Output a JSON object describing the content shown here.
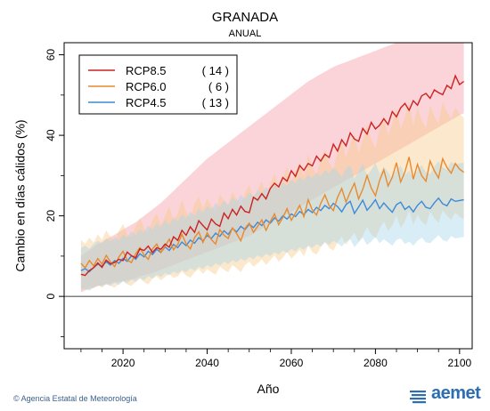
{
  "title": "GRANADA",
  "subtitle": "ANUAL",
  "footer": {
    "credit": "© Agencia Estatal de Meteorología",
    "logo_text": "aemet",
    "logo_color": "#2d6eb3"
  },
  "chart_data": {
    "type": "line",
    "xlabel": "Año",
    "ylabel": "Cambio en días cálidos (%)",
    "xlim": [
      2006,
      2103
    ],
    "ylim": [
      -13,
      63
    ],
    "xticks": [
      2020,
      2040,
      2060,
      2080,
      2100
    ],
    "yticks": [
      0,
      20,
      40,
      60
    ],
    "zero_line": true,
    "grid": false,
    "legend_position": "top-left",
    "x_start": 2010,
    "series": [
      {
        "name": "RCP8.5",
        "count": "( 14 )",
        "color": "#cc2222",
        "band_color": "#f4a0a8",
        "values": [
          5.5,
          5.2,
          6.4,
          7.1,
          8.3,
          7.2,
          9.0,
          8.1,
          8.4,
          9.2,
          8.9,
          11.0,
          10.1,
          9.6,
          11.8,
          11.4,
          12.5,
          10.9,
          12.1,
          11.7,
          13.0,
          12.2,
          14.8,
          13.9,
          16.4,
          15.2,
          17.3,
          15.9,
          18.8,
          17.6,
          16.5,
          19.2,
          18.0,
          17.4,
          20.7,
          19.3,
          21.6,
          20.2,
          22.4,
          21.1,
          20.8,
          24.6,
          23.9,
          25.5,
          24.2,
          26.8,
          28.1,
          27.2,
          29.5,
          28.6,
          31.2,
          29.8,
          32.5,
          31.3,
          33.0,
          32.4,
          34.8,
          33.6,
          35.3,
          34.5,
          37.8,
          36.1,
          38.9,
          37.4,
          40.6,
          39.1,
          38.5,
          41.7,
          40.3,
          43.2,
          41.6,
          42.5,
          44.1,
          42.7,
          45.9,
          44.6,
          46.8,
          47.9,
          46.2,
          48.6,
          47.5,
          49.8,
          50.4,
          49.2,
          51.3,
          50.6,
          50.1,
          52.4,
          51.6,
          54.8,
          52.6,
          53.4
        ],
        "band_low": [
          1.0,
          1.5,
          1.8,
          2.2,
          2.5,
          2.8,
          3.0,
          3.2,
          3.5,
          3.6,
          3.8,
          4.0,
          4.2,
          4.5,
          5.0,
          5.3,
          5.5,
          5.8,
          6.2,
          6.6,
          7.0,
          7.4,
          7.8,
          8.2,
          8.6,
          9.0,
          9.4,
          9.8,
          10.2,
          10.6,
          11.0,
          11.4,
          11.8,
          12.2,
          12.6,
          13.0,
          13.4,
          13.8,
          14.2,
          14.6,
          15.0,
          15.6,
          16.2,
          16.8,
          17.4,
          18.0,
          18.6,
          19.2,
          19.8,
          20.4,
          21.0,
          21.6,
          22.2,
          22.8,
          23.4,
          24.0,
          24.6,
          25.2,
          25.8,
          26.4,
          27.0,
          27.6,
          28.2,
          28.8,
          29.4,
          30.0,
          30.6,
          31.2,
          31.8,
          32.4,
          33.0,
          33.6,
          34.2,
          34.8,
          35.4,
          36.0,
          36.6,
          37.2,
          37.8,
          38.4,
          39.0,
          39.6,
          40.2,
          40.8,
          41.4,
          42.0,
          42.6,
          43.2,
          43.8,
          44.4,
          45.0,
          45.5
        ],
        "band_high": [
          10.0,
          10.8,
          11.5,
          12.2,
          13.0,
          13.5,
          14.2,
          14.8,
          15.3,
          16.0,
          16.6,
          17.2,
          17.8,
          18.4,
          19.2,
          20.0,
          20.8,
          21.6,
          22.4,
          23.2,
          24.2,
          25.2,
          26.2,
          27.2,
          28.2,
          29.2,
          30.2,
          31.2,
          32.2,
          33.2,
          34.2,
          35.0,
          35.8,
          36.6,
          37.4,
          38.2,
          39.0,
          39.8,
          40.6,
          41.4,
          42.2,
          43.0,
          43.8,
          44.6,
          45.4,
          46.2,
          47.0,
          47.8,
          48.6,
          49.4,
          50.2,
          51.0,
          51.8,
          52.6,
          53.4,
          54.0,
          54.6,
          55.2,
          55.8,
          56.4,
          57.0,
          57.4,
          57.8,
          58.2,
          58.6,
          59.0,
          59.4,
          59.8,
          60.2,
          60.6,
          61.0,
          61.4,
          61.8,
          62.2,
          62.6,
          63.0,
          63.0,
          63.0,
          63.0,
          63.0,
          63.0,
          63.0,
          63.0,
          63.0,
          63.0,
          63.0,
          63.0,
          63.0,
          63.0,
          63.0,
          63.0,
          63.0
        ]
      },
      {
        "name": "RCP6.0",
        "count": "(  6 )",
        "color": "#e88a2e",
        "band_color": "#f9cc8e",
        "values": [
          8.2,
          7.1,
          8.9,
          7.6,
          9.4,
          8.0,
          10.2,
          8.6,
          7.4,
          9.8,
          11.2,
          9.0,
          8.4,
          10.6,
          12.1,
          10.3,
          9.2,
          11.8,
          13.0,
          10.9,
          12.5,
          14.2,
          11.6,
          12.9,
          15.4,
          13.1,
          11.8,
          14.6,
          16.0,
          13.4,
          15.8,
          14.1,
          13.0,
          16.6,
          15.2,
          14.4,
          17.0,
          15.6,
          13.8,
          16.9,
          18.2,
          15.9,
          17.4,
          19.0,
          16.4,
          18.6,
          20.5,
          17.8,
          19.6,
          21.8,
          18.9,
          20.7,
          22.6,
          19.8,
          24.0,
          21.4,
          20.2,
          23.1,
          25.2,
          22.5,
          21.3,
          24.6,
          26.8,
          23.4,
          25.9,
          28.1,
          24.2,
          26.6,
          30.0,
          26.9,
          25.0,
          28.8,
          31.4,
          27.4,
          29.6,
          33.2,
          28.4,
          30.9,
          34.6,
          29.1,
          32.8,
          30.0,
          28.6,
          33.6,
          31.2,
          29.4,
          34.2,
          32.0,
          30.6,
          33.0,
          31.6,
          30.8
        ],
        "band_low": [
          2.0,
          1.6,
          2.4,
          2.0,
          2.8,
          2.2,
          3.0,
          2.6,
          2.2,
          3.2,
          3.8,
          3.0,
          2.6,
          3.6,
          4.4,
          3.6,
          3.0,
          4.4,
          5.0,
          4.0,
          4.8,
          5.6,
          4.6,
          5.0,
          6.2,
          5.2,
          4.6,
          6.0,
          6.8,
          5.6,
          6.8,
          6.0,
          5.4,
          7.4,
          6.6,
          6.0,
          7.8,
          7.0,
          6.0,
          7.8,
          8.6,
          7.4,
          8.2,
          9.2,
          7.8,
          9.0,
          10.2,
          8.6,
          9.6,
          11.0,
          9.4,
          10.4,
          11.6,
          10.0,
          12.6,
          11.0,
          10.4,
          12.2,
          13.6,
          12.0,
          11.4,
          13.4,
          14.8,
          12.8,
          14.4,
          15.8,
          13.6,
          15.0,
          17.2,
          15.4,
          14.4,
          16.8,
          18.6,
          16.2,
          17.6,
          20.0,
          17.0,
          18.6,
          21.2,
          17.8,
          20.2,
          18.6,
          17.6,
          21.0,
          19.4,
          18.2,
          21.4,
          20.0,
          19.0,
          20.8,
          19.8,
          19.2
        ],
        "band_high": [
          14.0,
          13.0,
          14.6,
          13.4,
          15.4,
          14.0,
          16.4,
          14.8,
          13.6,
          16.2,
          18.0,
          15.4,
          14.8,
          17.4,
          19.4,
          17.0,
          15.8,
          19.0,
          20.6,
          17.8,
          20.0,
          22.4,
          19.0,
          20.6,
          24.0,
          21.0,
          19.4,
          23.0,
          24.8,
          21.6,
          24.4,
          22.4,
          20.8,
          25.4,
          23.8,
          22.6,
          26.0,
          24.2,
          21.8,
          25.8,
          27.6,
          24.6,
          26.4,
          28.6,
          25.2,
          28.0,
          30.6,
          27.0,
          29.4,
          32.2,
          28.6,
          31.0,
          33.4,
          29.8,
          35.4,
          32.0,
          30.4,
          34.0,
          36.8,
          33.2,
          31.6,
          36.0,
          38.6,
          34.6,
          37.8,
          40.4,
          35.8,
          38.8,
          42.6,
          39.0,
          36.8,
          41.6,
          44.6,
          40.0,
          43.0,
          46.8,
          41.6,
          44.6,
          48.4,
          42.4,
          47.0,
          43.6,
          41.8,
          47.6,
          44.8,
          42.8,
          48.2,
          45.8,
          44.0,
          47.0,
          45.2,
          44.4
        ]
      },
      {
        "name": "RCP4.5",
        "count": "( 13 )",
        "color": "#3d8ad8",
        "band_color": "#a8d8e8",
        "values": [
          6.4,
          6.9,
          6.1,
          7.2,
          8.0,
          7.5,
          8.6,
          7.8,
          8.9,
          8.2,
          9.4,
          8.7,
          10.1,
          9.2,
          10.6,
          9.8,
          11.2,
          10.4,
          11.7,
          10.9,
          12.3,
          11.4,
          12.9,
          12.1,
          13.5,
          12.6,
          14.0,
          13.2,
          14.6,
          13.8,
          15.1,
          14.4,
          15.7,
          14.9,
          16.3,
          15.4,
          16.9,
          16.0,
          17.4,
          16.6,
          17.9,
          17.1,
          18.4,
          17.6,
          19.0,
          18.2,
          19.5,
          18.7,
          20.0,
          19.2,
          20.5,
          19.8,
          21.1,
          20.3,
          21.6,
          20.8,
          22.1,
          21.3,
          22.6,
          21.8,
          23.1,
          22.3,
          21.0,
          22.8,
          23.6,
          20.6,
          22.2,
          23.9,
          21.4,
          22.6,
          24.0,
          21.8,
          23.2,
          22.0,
          20.9,
          22.8,
          23.4,
          21.6,
          22.4,
          21.0,
          22.6,
          23.6,
          22.1,
          21.8,
          23.2,
          24.4,
          23.0,
          22.5,
          24.2,
          23.6,
          23.8,
          24.0
        ],
        "band_low": [
          1.6,
          2.0,
          1.4,
          2.2,
          2.8,
          2.4,
          3.2,
          2.6,
          3.4,
          2.8,
          3.8,
          3.2,
          4.2,
          3.6,
          4.6,
          4.0,
          5.0,
          4.4,
          5.4,
          4.8,
          5.8,
          5.2,
          6.2,
          5.6,
          6.6,
          6.0,
          7.0,
          6.4,
          7.4,
          6.8,
          7.8,
          7.2,
          8.2,
          7.6,
          8.6,
          8.0,
          9.0,
          8.4,
          9.4,
          8.8,
          9.8,
          9.2,
          10.2,
          9.6,
          10.6,
          10.0,
          11.0,
          10.4,
          11.4,
          10.8,
          11.8,
          11.2,
          12.2,
          11.6,
          12.6,
          12.0,
          13.0,
          12.4,
          13.4,
          12.8,
          13.8,
          13.2,
          12.4,
          13.6,
          14.2,
          12.2,
          13.4,
          14.6,
          12.8,
          13.6,
          14.8,
          13.2,
          14.2,
          13.4,
          12.6,
          14.0,
          14.4,
          13.0,
          13.6,
          12.6,
          13.8,
          14.6,
          13.4,
          13.2,
          14.2,
          15.2,
          14.0,
          13.6,
          15.0,
          14.4,
          14.6,
          14.8
        ],
        "band_high": [
          12.0,
          12.6,
          11.8,
          13.0,
          13.8,
          13.2,
          14.4,
          13.6,
          14.8,
          14.0,
          15.4,
          14.6,
          16.2,
          15.2,
          16.8,
          15.8,
          17.6,
          16.6,
          18.2,
          17.2,
          19.0,
          17.8,
          19.6,
          18.8,
          20.4,
          19.4,
          21.0,
          20.0,
          21.8,
          20.8,
          22.4,
          21.6,
          23.2,
          22.2,
          23.8,
          22.8,
          24.6,
          23.6,
          25.2,
          24.2,
          25.8,
          24.8,
          26.4,
          25.6,
          27.2,
          26.4,
          27.8,
          26.8,
          28.4,
          27.4,
          29.0,
          28.2,
          29.6,
          28.8,
          30.2,
          29.4,
          30.8,
          29.8,
          31.4,
          30.6,
          32.0,
          31.0,
          29.6,
          31.8,
          32.6,
          29.2,
          31.0,
          33.0,
          30.0,
          31.4,
          33.2,
          30.4,
          32.2,
          30.8,
          29.4,
          31.6,
          32.4,
          30.2,
          31.2,
          29.4,
          31.4,
          32.6,
          30.8,
          30.4,
          32.2,
          33.6,
          32.0,
          31.4,
          33.4,
          32.8,
          33.0,
          33.2
        ]
      }
    ]
  }
}
